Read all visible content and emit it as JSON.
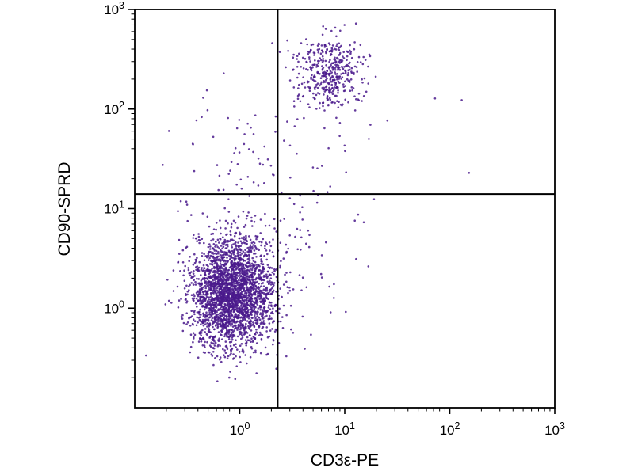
{
  "page": {
    "background": "#ffffff"
  },
  "chart_data": {
    "type": "scatter",
    "title": "",
    "xlabel": "CD3ε-PE",
    "ylabel": "CD90-SPRD",
    "xscale": "log",
    "yscale": "log",
    "xlim": [
      0.1,
      1000
    ],
    "ylim": [
      0.1,
      1000
    ],
    "tick_base": "10",
    "x_tick_exponents": [
      0,
      1,
      2,
      3
    ],
    "y_tick_exponents": [
      0,
      1,
      2,
      3
    ],
    "grid": false,
    "legend": "none",
    "point_color": "#4a1a8c",
    "point_radius": 1.3,
    "point_opacity": 0.85,
    "axis_color": "#000000",
    "quadrant_gates": {
      "x": 2.3,
      "y": 14
    },
    "populations": [
      {
        "name": "dense-lower-left-double-negative",
        "center_log10": [
          -0.08,
          0.15
        ],
        "sd_log10": [
          0.2,
          0.27
        ],
        "count": 2700
      },
      {
        "name": "upper-middle-double-positive",
        "center_log10": [
          0.85,
          2.38
        ],
        "sd_log10": [
          0.16,
          0.18
        ],
        "count": 420
      },
      {
        "name": "sparse-column-above-main-cluster",
        "center_log10": [
          -0.05,
          1.3
        ],
        "sd_log10": [
          0.28,
          0.55
        ],
        "count": 80
      },
      {
        "name": "sparse-mid-transition",
        "center_log10": [
          0.55,
          0.55
        ],
        "sd_log10": [
          0.4,
          0.45
        ],
        "count": 80
      },
      {
        "name": "tail-below-upper-cluster",
        "center_log10": [
          0.8,
          1.85
        ],
        "sd_log10": [
          0.25,
          0.35
        ],
        "count": 30
      },
      {
        "name": "right-side-outliers",
        "center_log10": [
          1.5,
          1.7
        ],
        "sd_log10": [
          0.45,
          0.3
        ],
        "count": 8
      }
    ],
    "seed": 42
  }
}
